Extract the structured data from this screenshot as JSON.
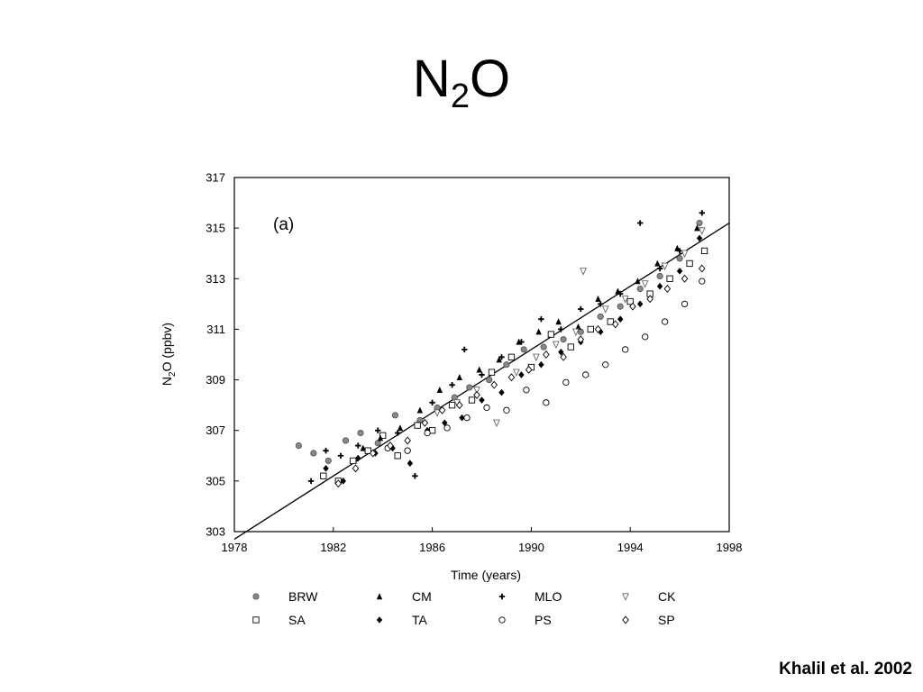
{
  "slide": {
    "title_main": "N",
    "title_sub": "2",
    "title_end": "O",
    "citation": "Khalil et al. 2002"
  },
  "chart_data": {
    "type": "scatter",
    "panel_label": "(a)",
    "xlabel": "Time (years)",
    "ylabel_main": "N",
    "ylabel_sub": "2",
    "ylabel_end": "O (ppbv)",
    "xlim": [
      1978,
      1998
    ],
    "ylim": [
      303,
      317
    ],
    "x_ticks": [
      1978,
      1982,
      1986,
      1990,
      1994,
      1998
    ],
    "y_ticks": [
      303,
      305,
      307,
      309,
      311,
      313,
      315,
      317
    ],
    "grid": false,
    "legend_position": "bottom",
    "trend_line": {
      "x": [
        1978,
        1998
      ],
      "y": [
        302.7,
        315.2
      ]
    },
    "series": [
      {
        "name": "BRW",
        "marker": "shaded-circle",
        "x_range": [
          1980.5,
          1997.0
        ],
        "y_at_start": 306.0,
        "y_at_end": 315.0,
        "points": [
          [
            1980.6,
            306.4
          ],
          [
            1981.2,
            306.1
          ],
          [
            1981.8,
            305.8
          ],
          [
            1982.5,
            306.6
          ],
          [
            1983.1,
            306.9
          ],
          [
            1983.8,
            306.5
          ],
          [
            1984.5,
            307.6
          ],
          [
            1985.0,
            306.2
          ],
          [
            1985.5,
            307.4
          ],
          [
            1986.2,
            307.9
          ],
          [
            1986.9,
            308.3
          ],
          [
            1987.5,
            308.7
          ],
          [
            1988.3,
            309.0
          ],
          [
            1989.0,
            309.6
          ],
          [
            1989.7,
            310.2
          ],
          [
            1990.5,
            310.3
          ],
          [
            1991.3,
            310.6
          ],
          [
            1992.0,
            310.9
          ],
          [
            1992.8,
            311.5
          ],
          [
            1993.6,
            311.9
          ],
          [
            1994.4,
            312.6
          ],
          [
            1995.2,
            313.1
          ],
          [
            1996.0,
            313.8
          ],
          [
            1996.8,
            315.2
          ]
        ]
      },
      {
        "name": "SA",
        "marker": "open-square",
        "x_range": [
          1981.5,
          1997.0
        ],
        "y_at_start": 305.2,
        "y_at_end": 314.2,
        "points": [
          [
            1981.6,
            305.2
          ],
          [
            1982.2,
            305.0
          ],
          [
            1982.8,
            305.8
          ],
          [
            1983.4,
            306.2
          ],
          [
            1984.0,
            306.8
          ],
          [
            1984.6,
            306.0
          ],
          [
            1985.4,
            307.2
          ],
          [
            1986.0,
            307.0
          ],
          [
            1986.8,
            308.0
          ],
          [
            1987.6,
            308.2
          ],
          [
            1988.4,
            309.3
          ],
          [
            1989.2,
            309.9
          ],
          [
            1990.0,
            309.5
          ],
          [
            1990.8,
            310.8
          ],
          [
            1991.6,
            310.3
          ],
          [
            1992.4,
            311.0
          ],
          [
            1993.2,
            311.3
          ],
          [
            1994.0,
            312.1
          ],
          [
            1994.8,
            312.4
          ],
          [
            1995.6,
            313.0
          ],
          [
            1996.4,
            313.6
          ],
          [
            1997.0,
            314.1
          ]
        ]
      },
      {
        "name": "CM",
        "marker": "filled-triangle",
        "x_range": [
          1983.0,
          1997.0
        ],
        "y_at_start": 306.0,
        "y_at_end": 315.3,
        "points": [
          [
            1983.2,
            306.3
          ],
          [
            1983.9,
            306.7
          ],
          [
            1984.7,
            307.1
          ],
          [
            1985.5,
            307.8
          ],
          [
            1986.3,
            308.6
          ],
          [
            1987.1,
            309.1
          ],
          [
            1987.9,
            309.4
          ],
          [
            1988.7,
            309.8
          ],
          [
            1989.5,
            310.5
          ],
          [
            1990.3,
            310.9
          ],
          [
            1991.1,
            311.3
          ],
          [
            1991.9,
            311.1
          ],
          [
            1992.7,
            312.2
          ],
          [
            1993.5,
            312.5
          ],
          [
            1994.3,
            312.9
          ],
          [
            1995.1,
            313.6
          ],
          [
            1995.9,
            314.2
          ],
          [
            1996.7,
            315.0
          ]
        ]
      },
      {
        "name": "TA",
        "marker": "filled-diamond",
        "x_range": [
          1981.5,
          1997.0
        ],
        "y_at_start": 305.0,
        "y_at_end": 315.0,
        "points": [
          [
            1981.7,
            305.5
          ],
          [
            1982.4,
            305.0
          ],
          [
            1983.0,
            305.9
          ],
          [
            1983.7,
            306.1
          ],
          [
            1984.4,
            306.3
          ],
          [
            1985.1,
            305.7
          ],
          [
            1985.8,
            307.0
          ],
          [
            1986.5,
            307.3
          ],
          [
            1987.2,
            307.5
          ],
          [
            1988.0,
            308.2
          ],
          [
            1988.8,
            308.5
          ],
          [
            1989.6,
            309.2
          ],
          [
            1990.4,
            309.6
          ],
          [
            1991.2,
            310.1
          ],
          [
            1992.0,
            310.5
          ],
          [
            1992.8,
            310.9
          ],
          [
            1993.6,
            311.4
          ],
          [
            1994.4,
            312.0
          ],
          [
            1995.2,
            312.7
          ],
          [
            1996.0,
            313.3
          ],
          [
            1996.8,
            314.6
          ]
        ]
      },
      {
        "name": "MLO",
        "marker": "plus",
        "x_range": [
          1981.0,
          1997.0
        ],
        "y_at_start": 305.0,
        "y_at_end": 315.5,
        "points": [
          [
            1981.1,
            305.0
          ],
          [
            1981.7,
            306.2
          ],
          [
            1982.3,
            306.0
          ],
          [
            1983.0,
            306.4
          ],
          [
            1983.8,
            307.0
          ],
          [
            1984.6,
            306.9
          ],
          [
            1985.3,
            305.2
          ],
          [
            1986.0,
            308.1
          ],
          [
            1986.8,
            308.8
          ],
          [
            1987.3,
            310.2
          ],
          [
            1988.0,
            309.2
          ],
          [
            1988.8,
            309.9
          ],
          [
            1989.6,
            310.5
          ],
          [
            1990.4,
            311.4
          ],
          [
            1991.2,
            311.0
          ],
          [
            1992.0,
            311.8
          ],
          [
            1992.8,
            312.0
          ],
          [
            1993.6,
            312.4
          ],
          [
            1994.4,
            315.2
          ],
          [
            1995.2,
            313.4
          ],
          [
            1996.0,
            314.1
          ],
          [
            1996.9,
            315.6
          ]
        ]
      },
      {
        "name": "PS",
        "marker": "open-circle",
        "x_range": [
          1984.0,
          1997.0
        ],
        "y_at_start": 306.0,
        "y_at_end": 313.0,
        "points": [
          [
            1984.2,
            306.3
          ],
          [
            1985.0,
            306.2
          ],
          [
            1985.8,
            306.9
          ],
          [
            1986.6,
            307.1
          ],
          [
            1987.4,
            307.5
          ],
          [
            1988.2,
            307.9
          ],
          [
            1989.0,
            307.8
          ],
          [
            1989.8,
            308.6
          ],
          [
            1990.6,
            308.1
          ],
          [
            1991.4,
            308.9
          ],
          [
            1992.2,
            309.2
          ],
          [
            1993.0,
            309.6
          ],
          [
            1993.8,
            310.2
          ],
          [
            1994.6,
            310.7
          ],
          [
            1995.4,
            311.3
          ],
          [
            1996.2,
            312.0
          ],
          [
            1996.9,
            312.9
          ]
        ]
      },
      {
        "name": "CK",
        "marker": "open-triangle-down",
        "x_range": [
          1986.0,
          1997.0
        ],
        "y_at_start": 307.5,
        "y_at_end": 315.0,
        "points": [
          [
            1986.2,
            307.7
          ],
          [
            1987.0,
            308.1
          ],
          [
            1987.8,
            308.6
          ],
          [
            1988.6,
            307.3
          ],
          [
            1989.4,
            309.3
          ],
          [
            1990.2,
            309.9
          ],
          [
            1991.0,
            310.4
          ],
          [
            1991.8,
            310.9
          ],
          [
            1992.1,
            313.3
          ],
          [
            1993.0,
            311.8
          ],
          [
            1993.8,
            312.2
          ],
          [
            1994.6,
            312.8
          ],
          [
            1995.4,
            313.5
          ],
          [
            1996.2,
            314.0
          ],
          [
            1996.9,
            314.9
          ]
        ]
      },
      {
        "name": "SP",
        "marker": "open-diamond",
        "x_range": [
          1982.0,
          1997.0
        ],
        "y_at_start": 305.0,
        "y_at_end": 313.5,
        "points": [
          [
            1982.2,
            304.9
          ],
          [
            1982.9,
            305.5
          ],
          [
            1983.6,
            306.1
          ],
          [
            1984.3,
            306.4
          ],
          [
            1985.0,
            306.6
          ],
          [
            1985.7,
            307.3
          ],
          [
            1986.4,
            307.8
          ],
          [
            1987.1,
            308.0
          ],
          [
            1987.8,
            308.4
          ],
          [
            1988.5,
            308.8
          ],
          [
            1989.2,
            309.1
          ],
          [
            1989.9,
            309.4
          ],
          [
            1990.6,
            310.0
          ],
          [
            1991.3,
            309.9
          ],
          [
            1992.0,
            310.6
          ],
          [
            1992.7,
            311.0
          ],
          [
            1993.4,
            311.2
          ],
          [
            1994.1,
            311.9
          ],
          [
            1994.8,
            312.2
          ],
          [
            1995.5,
            312.6
          ],
          [
            1996.2,
            313.0
          ],
          [
            1996.9,
            313.4
          ]
        ]
      }
    ]
  }
}
